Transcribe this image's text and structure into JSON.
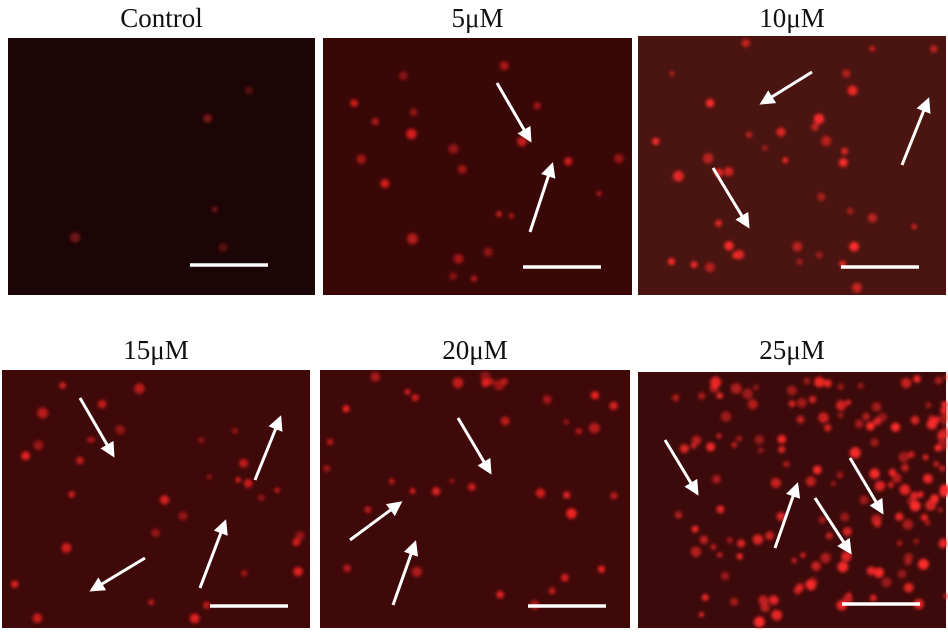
{
  "panels": [
    {
      "label": "Control"
    },
    {
      "label": "5μM"
    },
    {
      "label": "10μM"
    },
    {
      "label": "15μM"
    },
    {
      "label": "20μM"
    },
    {
      "label": "25μM"
    }
  ]
}
